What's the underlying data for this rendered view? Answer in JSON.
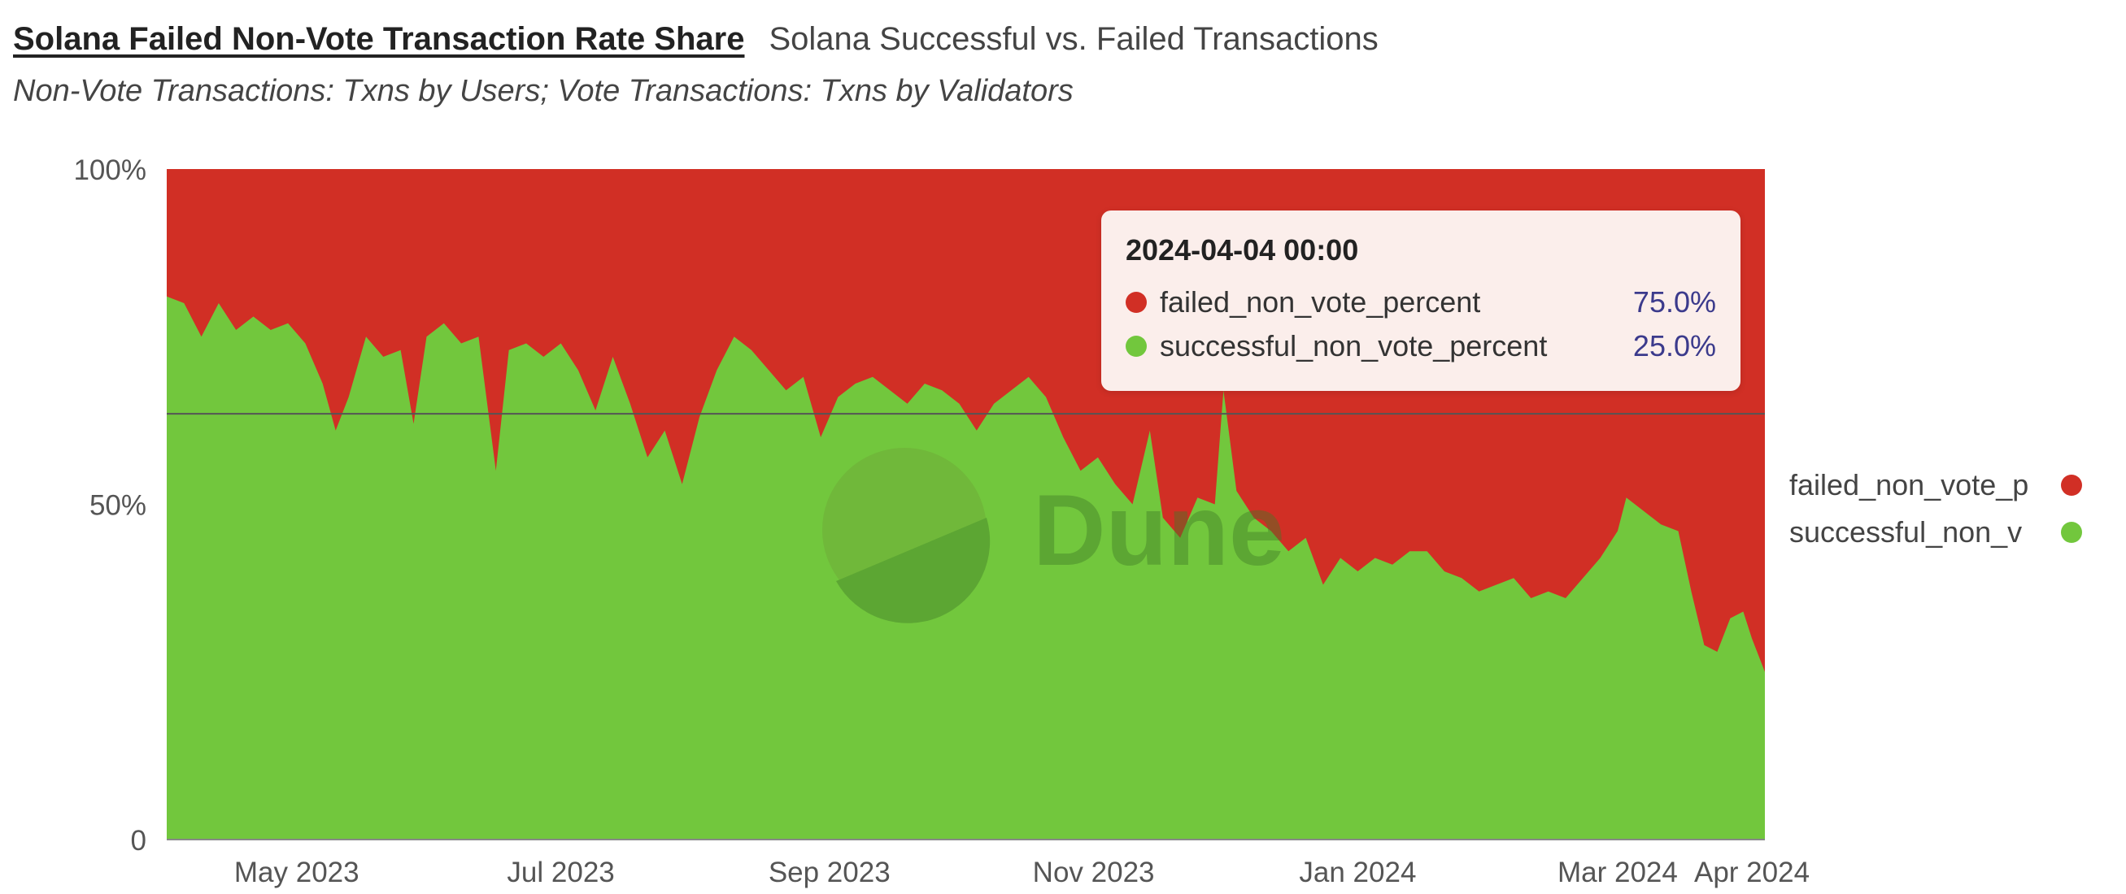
{
  "header": {
    "title": "Solana Failed Non-Vote Transaction Rate Share",
    "secondary_tab": "Solana Successful vs. Failed Transactions",
    "subtitle": "Non-Vote Transactions: Txns by Users; Vote Transactions: Txns by Validators"
  },
  "watermark": "Dune",
  "colors": {
    "failed": "#d12f25",
    "successful": "#72c73d"
  },
  "legend": {
    "items": [
      {
        "label": "failed_non_vote_p",
        "color": "#d12f25"
      },
      {
        "label": "successful_non_v",
        "color": "#72c73d"
      }
    ]
  },
  "tooltip": {
    "title": "2024-04-04 00:00",
    "rows": [
      {
        "label": "failed_non_vote_percent",
        "value": "75.0%",
        "color": "#d12f25"
      },
      {
        "label": "successful_non_vote_percent",
        "value": "25.0%",
        "color": "#72c73d"
      }
    ]
  },
  "chart_data": {
    "type": "area",
    "stacked": "percent",
    "x_range": [
      "2023-04-01",
      "2024-04-04"
    ],
    "y_range": [
      0,
      100
    ],
    "y_ticks": [
      {
        "value": 0,
        "label": "0"
      },
      {
        "value": 50,
        "label": "50%"
      },
      {
        "value": 100,
        "label": "100%"
      }
    ],
    "x_ticks": [
      {
        "date": "2023-05-01",
        "label": "May 2023"
      },
      {
        "date": "2023-07-01",
        "label": "Jul 2023"
      },
      {
        "date": "2023-09-01",
        "label": "Sep 2023"
      },
      {
        "date": "2023-11-01",
        "label": "Nov 2023"
      },
      {
        "date": "2024-01-01",
        "label": "Jan 2024"
      },
      {
        "date": "2024-03-01",
        "label": "Mar 2024"
      },
      {
        "date": "2024-04-01",
        "label": "Apr 2024"
      }
    ],
    "reference_line_y": 63.5,
    "series": [
      {
        "name": "failed_non_vote_percent",
        "color": "#d12f25"
      },
      {
        "name": "successful_non_vote_percent",
        "color": "#72c73d",
        "points": [
          [
            "2023-04-01",
            81
          ],
          [
            "2023-04-05",
            80
          ],
          [
            "2023-04-09",
            75
          ],
          [
            "2023-04-13",
            80
          ],
          [
            "2023-04-17",
            76
          ],
          [
            "2023-04-21",
            78
          ],
          [
            "2023-04-25",
            76
          ],
          [
            "2023-04-29",
            77
          ],
          [
            "2023-05-03",
            74
          ],
          [
            "2023-05-07",
            68
          ],
          [
            "2023-05-10",
            61
          ],
          [
            "2023-05-13",
            66
          ],
          [
            "2023-05-17",
            75
          ],
          [
            "2023-05-21",
            72
          ],
          [
            "2023-05-25",
            73
          ],
          [
            "2023-05-28",
            62
          ],
          [
            "2023-05-31",
            75
          ],
          [
            "2023-06-04",
            77
          ],
          [
            "2023-06-08",
            74
          ],
          [
            "2023-06-12",
            75
          ],
          [
            "2023-06-16",
            55
          ],
          [
            "2023-06-19",
            73
          ],
          [
            "2023-06-23",
            74
          ],
          [
            "2023-06-27",
            72
          ],
          [
            "2023-07-01",
            74
          ],
          [
            "2023-07-05",
            70
          ],
          [
            "2023-07-09",
            64
          ],
          [
            "2023-07-13",
            72
          ],
          [
            "2023-07-17",
            65
          ],
          [
            "2023-07-21",
            57
          ],
          [
            "2023-07-25",
            61
          ],
          [
            "2023-07-29",
            53
          ],
          [
            "2023-08-02",
            63
          ],
          [
            "2023-08-06",
            70
          ],
          [
            "2023-08-10",
            75
          ],
          [
            "2023-08-14",
            73
          ],
          [
            "2023-08-18",
            70
          ],
          [
            "2023-08-22",
            67
          ],
          [
            "2023-08-26",
            69
          ],
          [
            "2023-08-30",
            60
          ],
          [
            "2023-09-03",
            66
          ],
          [
            "2023-09-07",
            68
          ],
          [
            "2023-09-11",
            69
          ],
          [
            "2023-09-15",
            67
          ],
          [
            "2023-09-19",
            65
          ],
          [
            "2023-09-23",
            68
          ],
          [
            "2023-09-27",
            67
          ],
          [
            "2023-10-01",
            65
          ],
          [
            "2023-10-05",
            61
          ],
          [
            "2023-10-09",
            65
          ],
          [
            "2023-10-13",
            67
          ],
          [
            "2023-10-17",
            69
          ],
          [
            "2023-10-21",
            66
          ],
          [
            "2023-10-25",
            60
          ],
          [
            "2023-10-29",
            55
          ],
          [
            "2023-11-02",
            57
          ],
          [
            "2023-11-06",
            53
          ],
          [
            "2023-11-10",
            50
          ],
          [
            "2023-11-14",
            61
          ],
          [
            "2023-11-17",
            48
          ],
          [
            "2023-11-21",
            45
          ],
          [
            "2023-11-25",
            51
          ],
          [
            "2023-11-29",
            50
          ],
          [
            "2023-12-01",
            67
          ],
          [
            "2023-12-04",
            52
          ],
          [
            "2023-12-08",
            48
          ],
          [
            "2023-12-12",
            46
          ],
          [
            "2023-12-16",
            43
          ],
          [
            "2023-12-20",
            45
          ],
          [
            "2023-12-24",
            38
          ],
          [
            "2023-12-28",
            42
          ],
          [
            "2024-01-01",
            40
          ],
          [
            "2024-01-05",
            42
          ],
          [
            "2024-01-09",
            41
          ],
          [
            "2024-01-13",
            43
          ],
          [
            "2024-01-17",
            43
          ],
          [
            "2024-01-21",
            40
          ],
          [
            "2024-01-25",
            39
          ],
          [
            "2024-01-29",
            37
          ],
          [
            "2024-02-02",
            38
          ],
          [
            "2024-02-06",
            39
          ],
          [
            "2024-02-10",
            36
          ],
          [
            "2024-02-14",
            37
          ],
          [
            "2024-02-18",
            36
          ],
          [
            "2024-02-22",
            39
          ],
          [
            "2024-02-26",
            42
          ],
          [
            "2024-03-01",
            46
          ],
          [
            "2024-03-03",
            51
          ],
          [
            "2024-03-07",
            49
          ],
          [
            "2024-03-11",
            47
          ],
          [
            "2024-03-15",
            46
          ],
          [
            "2024-03-18",
            37
          ],
          [
            "2024-03-21",
            29
          ],
          [
            "2024-03-24",
            28
          ],
          [
            "2024-03-27",
            33
          ],
          [
            "2024-03-30",
            34
          ],
          [
            "2024-04-01",
            30
          ],
          [
            "2024-04-04",
            25
          ]
        ]
      }
    ]
  }
}
